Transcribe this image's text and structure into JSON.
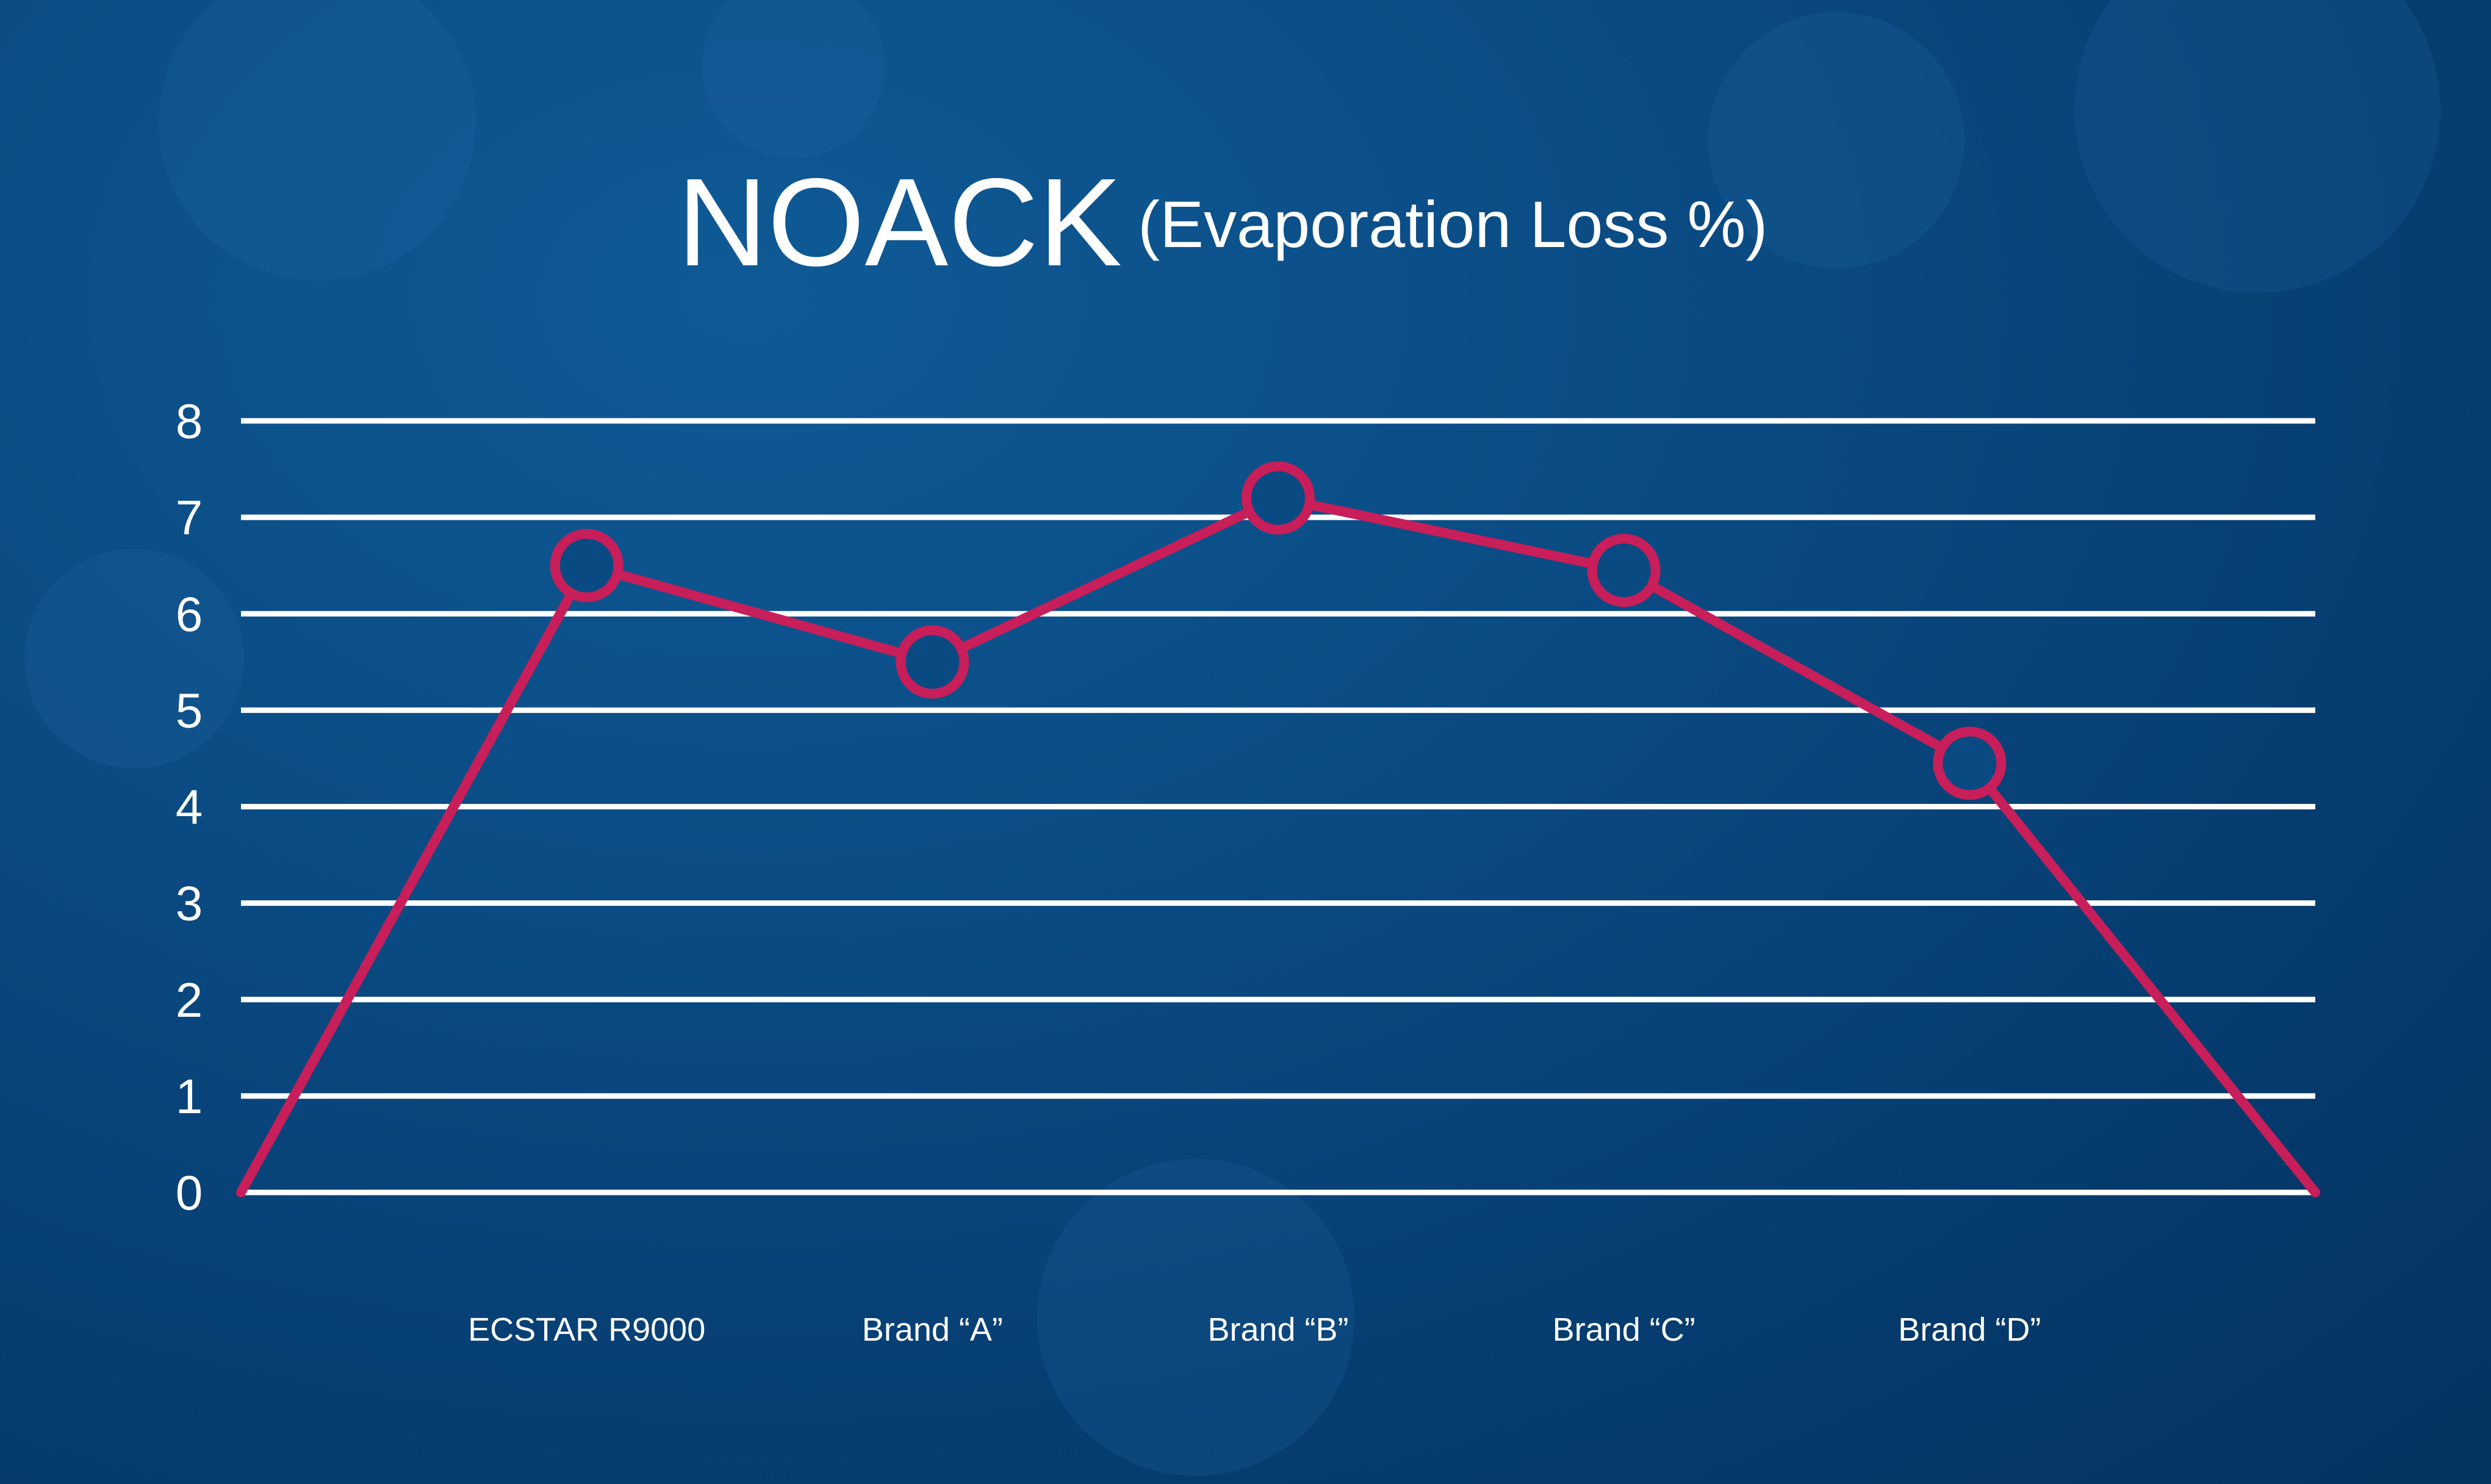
{
  "chart_data": {
    "type": "line",
    "title": "NOACK",
    "subtitle": "(Evaporation Loss %)",
    "xlabel": "",
    "ylabel": "",
    "categories": [
      "",
      "ECSTAR R9000",
      "Brand “A”",
      "Brand “B”",
      "Brand “C”",
      "Brand “D”",
      ""
    ],
    "series": [
      {
        "values": [
          0,
          6.5,
          5.5,
          7.2,
          6.45,
          4.45,
          0
        ],
        "color": "#c81e5a"
      }
    ],
    "ylim": [
      0,
      8
    ],
    "yticks": [
      "0",
      "1",
      "2",
      "3",
      "4",
      "5",
      "6",
      "7",
      "8"
    ],
    "grid": true,
    "grid_color": "#ffffff",
    "marker_fill": "#0a4a82",
    "background": "#0a4a82"
  }
}
